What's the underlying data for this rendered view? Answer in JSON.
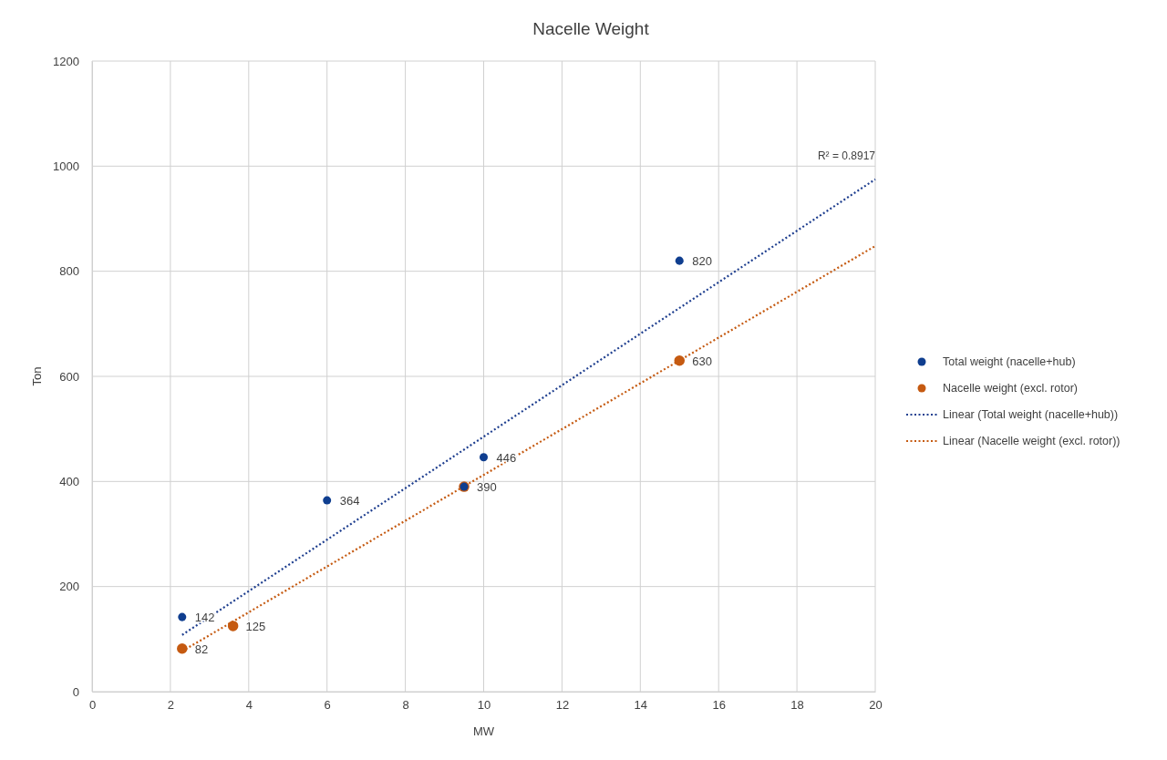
{
  "chart_data": {
    "type": "scatter",
    "title": "Nacelle Weight",
    "xlabel": "MW",
    "ylabel": "Ton",
    "xlim": [
      0,
      20
    ],
    "xticks": [
      0,
      2,
      4,
      6,
      8,
      10,
      12,
      14,
      16,
      18,
      20
    ],
    "ylim": [
      0,
      1200
    ],
    "yticks": [
      0,
      200,
      400,
      600,
      800,
      1000,
      1200
    ],
    "grid": true,
    "legend": "right",
    "marker": "circle",
    "annotations": [
      {
        "text": "R² = 0.8917",
        "x": 20,
        "y": 975
      }
    ],
    "series": [
      {
        "name": "Total weight (nacelle+hub)",
        "color": "#0f3e8f",
        "x": [
          2.3,
          6,
          9.5,
          10,
          15
        ],
        "values": [
          142,
          364,
          390,
          446,
          820
        ],
        "value_labels": [
          "142",
          "364",
          "390",
          "446",
          "820"
        ]
      },
      {
        "name": "Nacelle weight (excl. rotor)",
        "color": "#c55a11",
        "x": [
          2.3,
          3.6,
          9.5,
          15
        ],
        "values": [
          82,
          125,
          390,
          630
        ],
        "value_labels": [
          "82",
          "125",
          null,
          "630"
        ]
      },
      {
        "name": "Linear (Total weight (nacelle+hub))",
        "type": "line",
        "color": "#1f3f8f",
        "marker": "none",
        "line_style": "dotted",
        "x": [
          2.3,
          20
        ],
        "values": [
          108,
          975
        ]
      },
      {
        "name": "Linear (Nacelle weight (excl. rotor))",
        "type": "line",
        "color": "#c55a11",
        "marker": "none",
        "line_style": "dotted",
        "x": [
          2.3,
          20
        ],
        "values": [
          77,
          848
        ]
      }
    ]
  }
}
